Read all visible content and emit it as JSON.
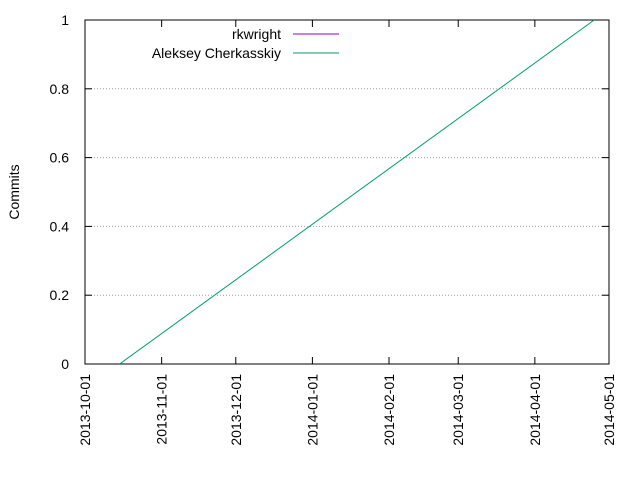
{
  "chart_data": {
    "type": "line",
    "title": "",
    "xlabel": "",
    "ylabel": "Commits",
    "x_type": "date",
    "xlim": [
      "2013-10-01",
      "2014-05-01"
    ],
    "ylim": [
      0,
      1
    ],
    "x_ticks": [
      "2013-10-01",
      "2013-11-01",
      "2013-12-01",
      "2014-01-01",
      "2014-02-01",
      "2014-03-01",
      "2014-04-01",
      "2014-05-01"
    ],
    "y_ticks": [
      0,
      0.2,
      0.4,
      0.6,
      0.8,
      1
    ],
    "y_tick_labels": [
      "0",
      "0.2",
      "0.4",
      "0.6",
      "0.8",
      "1"
    ],
    "grid": "horizontal dotted",
    "legend_position": "top-left",
    "series": [
      {
        "name": "rkwright",
        "color": "#9400d3",
        "x": [],
        "y": []
      },
      {
        "name": "Aleksey Cherkasskiy",
        "color": "#009e73",
        "x": [
          "2013-10-15",
          "2014-04-25"
        ],
        "y": [
          0,
          1
        ]
      }
    ]
  }
}
